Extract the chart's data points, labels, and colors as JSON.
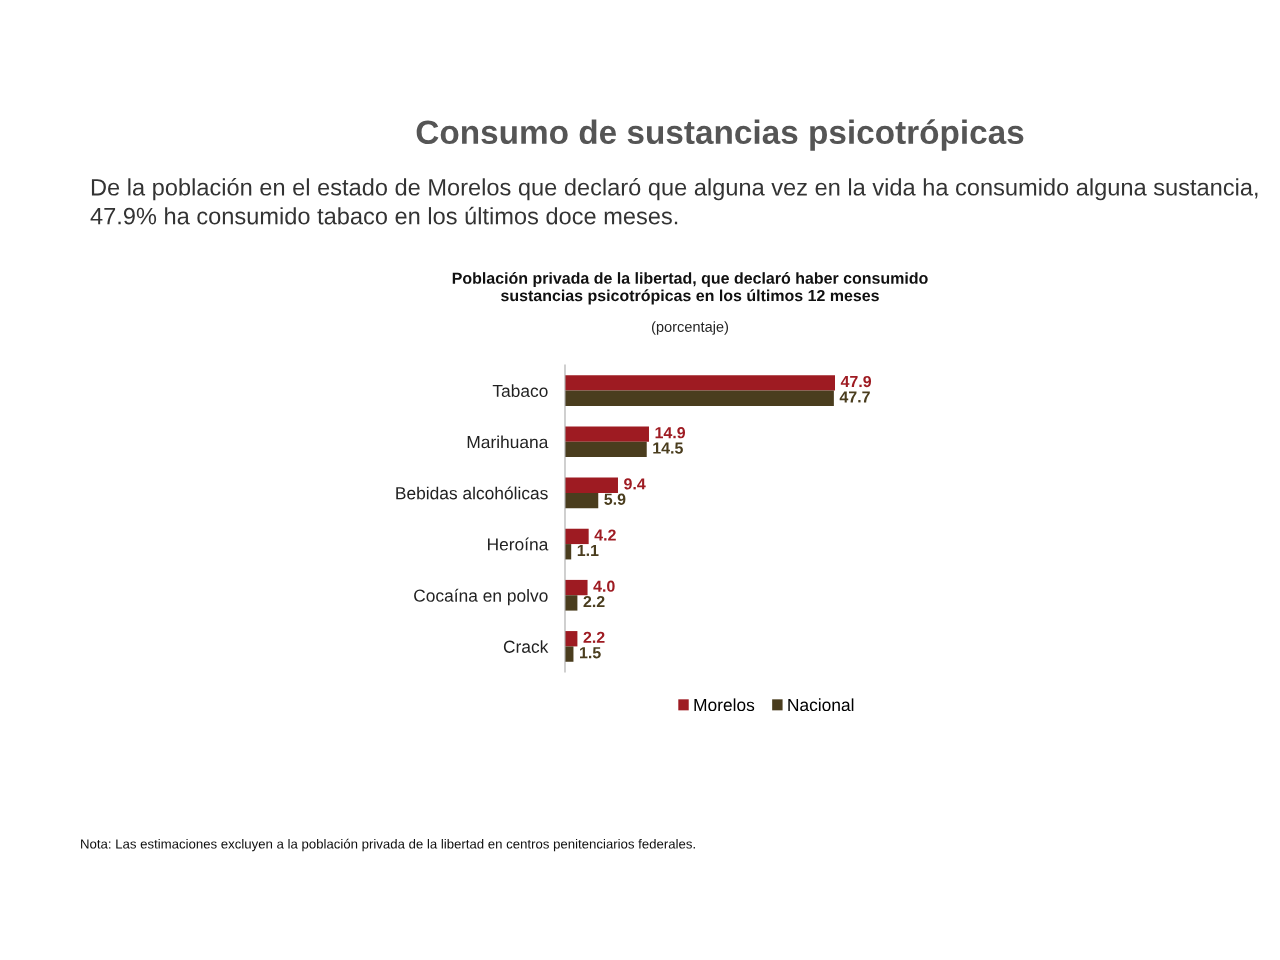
{
  "chart_data": {
    "type": "bar",
    "orientation": "horizontal",
    "title": "Consumo de sustancias psicotrópicas",
    "subtitle": "Población privada de la libertad, que declaró haber consumido sustancias psicotrópicas en los últimos 12 meses",
    "annotations": [
      "De la población en el estado de Morelos que declaró que alguna vez en la vida ha consumido alguna sustancia, 47.9% ha consumido tabaco en los últimos doce meses.",
      "(porcentaje)",
      "Nota: Las estimaciones excluyen a la población privada de la libertad en centros penitenciarios federales."
    ],
    "categories": [
      "Tabaco",
      "Marihuana",
      "Bebidas alcohólicas",
      "Heroína",
      "Cocaína en polvo",
      "Crack"
    ],
    "series": [
      {
        "name": "Morelos",
        "color": "#9e1b22",
        "values": [
          47.9,
          14.9,
          9.4,
          4.2,
          4.0,
          2.2
        ],
        "value_labels": [
          "47.9",
          "14.9",
          "9.4",
          "4.2",
          "4.0",
          "2.2"
        ]
      },
      {
        "name": "Nacional",
        "color": "#4a3d1e",
        "values": [
          47.7,
          14.5,
          5.9,
          1.1,
          2.2,
          1.5
        ],
        "value_labels": [
          "47.7",
          "14.5",
          "5.9",
          "1.1",
          "2.2",
          "1.5"
        ]
      }
    ],
    "legend": "bottom right",
    "tick_labels": "y"
  }
}
